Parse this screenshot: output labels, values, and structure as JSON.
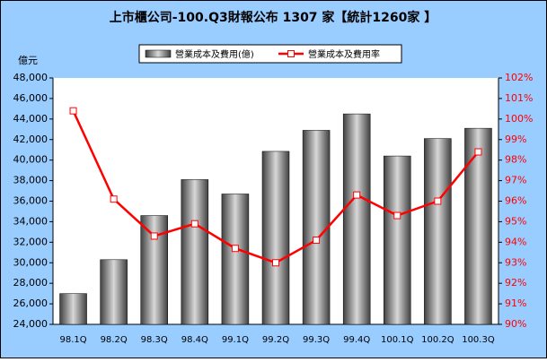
{
  "chart_data": {
    "type": "bar-line",
    "title": "上市櫃公司-100.Q3財報公布 1307 家【統計1260家 】",
    "y_label": "億元",
    "categories": [
      "98.1Q",
      "98.2Q",
      "98.3Q",
      "98.4Q",
      "99.1Q",
      "99.2Q",
      "99.3Q",
      "99.4Q",
      "100.1Q",
      "100.2Q",
      "100.3Q"
    ],
    "series": [
      {
        "name": "營業成本及費用(億)",
        "type": "bar",
        "color": "#d8d8d8",
        "values": [
          27000,
          30300,
          34600,
          38100,
          36700,
          40850,
          42900,
          44500,
          40400,
          42100,
          43100
        ]
      },
      {
        "name": "營業成本及費用率",
        "type": "line",
        "color": "#ff0000",
        "axis": "y2",
        "values": [
          100.4,
          96.1,
          94.3,
          94.9,
          93.7,
          93.0,
          94.1,
          96.3,
          95.3,
          96.0,
          98.4
        ]
      }
    ],
    "ylim": [
      24000,
      48000
    ],
    "yticks": [
      {
        "value": 24000,
        "label": "24,000"
      },
      {
        "value": 26000,
        "label": "26,000"
      },
      {
        "value": 28000,
        "label": "28,000"
      },
      {
        "value": 30000,
        "label": "30,000"
      },
      {
        "value": 32000,
        "label": "32,000"
      },
      {
        "value": 34000,
        "label": "34,000"
      },
      {
        "value": 36000,
        "label": "36,000"
      },
      {
        "value": 38000,
        "label": "38,000"
      },
      {
        "value": 40000,
        "label": "40,000"
      },
      {
        "value": 42000,
        "label": "42,000"
      },
      {
        "value": 44000,
        "label": "44,000"
      },
      {
        "value": 46000,
        "label": "46,000"
      },
      {
        "value": 48000,
        "label": "48,000"
      }
    ],
    "y2lim": [
      90,
      102
    ],
    "y2ticks": [
      {
        "value": 90,
        "label": "90%"
      },
      {
        "value": 91,
        "label": "91%"
      },
      {
        "value": 92,
        "label": "92%"
      },
      {
        "value": 93,
        "label": "93%"
      },
      {
        "value": 94,
        "label": "94%"
      },
      {
        "value": 95,
        "label": "95%"
      },
      {
        "value": 96,
        "label": "96%"
      },
      {
        "value": 97,
        "label": "97%"
      },
      {
        "value": 98,
        "label": "98%"
      },
      {
        "value": 99,
        "label": "99%"
      },
      {
        "value": 100,
        "label": "100%"
      },
      {
        "value": 101,
        "label": "101%"
      },
      {
        "value": 102,
        "label": "102%"
      }
    ],
    "y2_color": "#ff0000",
    "grid": false
  }
}
